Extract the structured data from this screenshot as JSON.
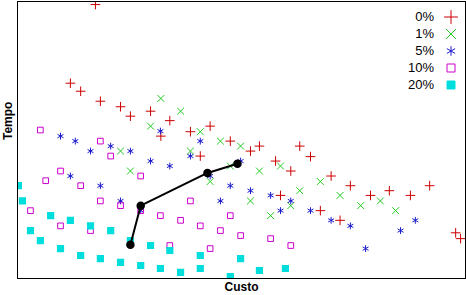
{
  "chart_data": {
    "type": "scatter",
    "x_label": "Custo",
    "y_label": "Tempo",
    "xlim": [
      0,
      100
    ],
    "ylim": [
      0,
      100
    ],
    "xticks": [],
    "yticks": [],
    "tick_labels": false,
    "legend": "top-right",
    "series": [
      {
        "name": "0%",
        "color": "#cc0000",
        "marker": "plus",
        "x": [
          17.4,
          11.8,
          14.1,
          18.5,
          23,
          29.7,
          34,
          38.6,
          43,
          47.5,
          52,
          57.6,
          61,
          65.4,
          70,
          74.3,
          78.8,
          83,
          87.7,
          92,
          97.8,
          98.9,
          67.6,
          72,
          58.7,
          32,
          25.2,
          54,
          63,
          40.8
        ],
        "y": [
          98.9,
          70.5,
          67.6,
          64,
          62,
          60.4,
          57,
          53,
          55,
          49.6,
          46,
          42.4,
          38.8,
          44,
          37,
          33.5,
          30,
          31.7,
          30,
          33.5,
          16.5,
          14.4,
          24.5,
          21,
          30,
          51.4,
          58.6,
          47.8,
          47.8,
          44.2
        ]
      },
      {
        "name": "1%",
        "color": "#22cc22",
        "marker": "times",
        "x": [
          32,
          29.7,
          23,
          36.4,
          40.8,
          45.3,
          49.8,
          54,
          58.7,
          63,
          67.6,
          72,
          76.6,
          81,
          84.4,
          25.2,
          43,
          52,
          56.5,
          61,
          38.6,
          47.5
        ],
        "y": [
          65,
          55,
          46,
          60.4,
          53,
          49.6,
          47.8,
          38.8,
          40.6,
          31.7,
          35,
          30,
          26.3,
          28,
          24.5,
          38.8,
          35,
          28,
          22.7,
          26.3,
          46,
          40.6
        ]
      },
      {
        "name": "5%",
        "color": "#1a1acc",
        "marker": "asterisk",
        "x": [
          9.6,
          12.9,
          16.3,
          20.8,
          25.2,
          29.7,
          34,
          38.6,
          43,
          47.5,
          52,
          56.5,
          61,
          65.4,
          70,
          74.3,
          77.7,
          85.5,
          88.8,
          18.5,
          23,
          27.5,
          31.9,
          40.8,
          49.8,
          58.7,
          11.8,
          45.3
        ],
        "y": [
          51.4,
          49.6,
          46,
          47.8,
          46,
          42.4,
          40.6,
          44.2,
          37,
          33.5,
          31.7,
          30,
          28,
          24.5,
          21,
          19,
          10.8,
          17.3,
          21,
          33.5,
          28,
          24.5,
          53.2,
          49.6,
          42.4,
          24.5,
          37,
          28
        ]
      },
      {
        "name": "10%",
        "color": "#cc00cc",
        "marker": "square",
        "x": [
          5.1,
          6.3,
          9.6,
          14.1,
          18.5,
          23,
          27.5,
          31.9,
          36.4,
          40.8,
          45.3,
          49.8,
          56.5,
          61,
          20.8,
          18.5,
          27.5,
          38.6,
          47.5,
          9.6,
          2.9,
          16.3,
          34,
          43
        ],
        "y": [
          53.6,
          35.3,
          38.8,
          33.5,
          28,
          26.3,
          24.5,
          22.7,
          21,
          19,
          17.3,
          15.5,
          14.4,
          11.9,
          44.2,
          49.6,
          37,
          28,
          22.7,
          19,
          24.5,
          17.3,
          11.9,
          10.8
        ]
      },
      {
        "name": "20%",
        "color": "#00dddd",
        "marker": "filled_square",
        "x": [
          0.2,
          1.1,
          2.9,
          5.1,
          9.6,
          14.1,
          18.5,
          23,
          27.5,
          31.9,
          36.4,
          40.8,
          47.5,
          54,
          59.8,
          7.4,
          11.8,
          16.3,
          20.8,
          25.2,
          29.7,
          34,
          40.8,
          49.8
        ],
        "y": [
          33.5,
          28,
          17.3,
          13.7,
          10.8,
          8.3,
          7.2,
          5.8,
          4.7,
          3.6,
          2.2,
          3.6,
          0.7,
          2.9,
          3.6,
          22.7,
          21,
          19,
          17.3,
          13.7,
          11.9,
          10.1,
          8.3,
          7.2
        ]
      },
      {
        "type": "line",
        "color": "#000000",
        "marker": "circle",
        "line_style": "solid",
        "x": [
          25.2,
          27.5,
          42.4,
          49.1
        ],
        "y": [
          12.2,
          26.3,
          38.1,
          41.4
        ]
      }
    ]
  }
}
